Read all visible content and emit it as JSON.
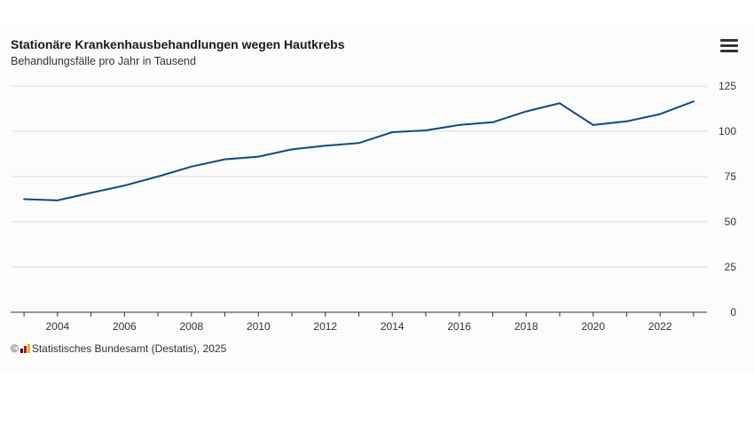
{
  "header": {
    "title": "Stationäre Krankenhausbehandlungen wegen Hautkrebs",
    "subtitle": "Behandlungsfälle pro Jahr in Tausend"
  },
  "footer": {
    "copyright_symbol": "©",
    "source": "Statistisches Bundesamt (Destatis), 2025"
  },
  "menu": {
    "icon": "hamburger-menu-icon"
  },
  "colors": {
    "line": "#0b4a8b",
    "grid": "#dcdcdc",
    "axis": "#333333"
  },
  "chart_data": {
    "type": "line",
    "title": "Stationäre Krankenhausbehandlungen wegen Hautkrebs",
    "subtitle": "Behandlungsfälle pro Jahr in Tausend",
    "x": [
      2003,
      2004,
      2005,
      2006,
      2007,
      2008,
      2009,
      2010,
      2011,
      2012,
      2013,
      2014,
      2015,
      2016,
      2017,
      2018,
      2019,
      2020,
      2021,
      2022,
      2023
    ],
    "series": [
      {
        "values": [
          62.5,
          61.8,
          66.0,
          70.0,
          75.0,
          80.5,
          84.5,
          86.0,
          90.0,
          92.0,
          93.5,
          99.5,
          100.5,
          103.5,
          105.0,
          111.0,
          115.5,
          103.5,
          105.5,
          109.5,
          116.5
        ]
      }
    ],
    "xticks": [
      "2004",
      "2006",
      "2008",
      "2010",
      "2012",
      "2014",
      "2016",
      "2018",
      "2020",
      "2022"
    ],
    "yticks": [
      "0",
      "25",
      "50",
      "75",
      "100",
      "125"
    ],
    "ylim": [
      0,
      125
    ],
    "xlim": [
      2002.6,
      2023.4
    ],
    "grid": true,
    "y_axis_side": "right"
  }
}
